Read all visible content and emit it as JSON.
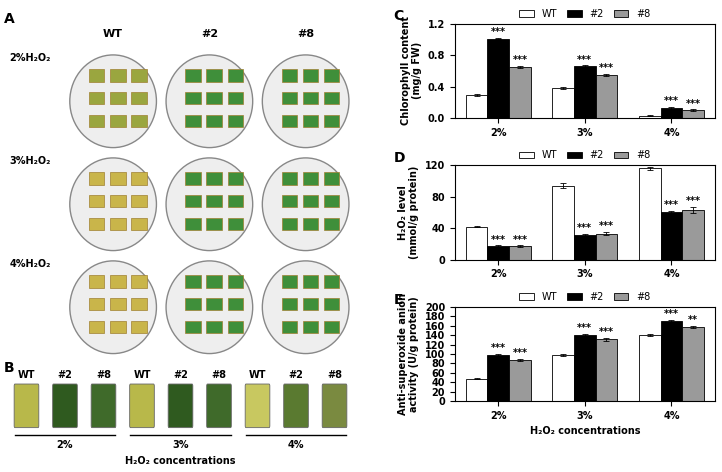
{
  "chart_data": [
    {
      "type": "bar",
      "panel": "C",
      "ylabel": "Chlorophyll content\n(mg/g FW)",
      "categories": [
        "2%",
        "3%",
        "4%"
      ],
      "ylim": [
        0.0,
        1.2
      ],
      "yticks": [
        0.0,
        0.4,
        0.8,
        1.2
      ],
      "legend": "upper center",
      "series": [
        {
          "name": "WT",
          "color": "#ffffff",
          "values": [
            0.29,
            0.38,
            0.03
          ],
          "errors": [
            0.01,
            0.01,
            0.005
          ]
        },
        {
          "name": "#2",
          "color": "#000000",
          "values": [
            1.01,
            0.66,
            0.13
          ],
          "errors": [
            0.01,
            0.01,
            0.01
          ],
          "significance": [
            "***",
            "***",
            "***"
          ]
        },
        {
          "name": "#8",
          "color": "#9a9a9a",
          "values": [
            0.65,
            0.55,
            0.1
          ],
          "errors": [
            0.01,
            0.01,
            0.01
          ],
          "significance": [
            "***",
            "***",
            "***"
          ]
        }
      ]
    },
    {
      "type": "bar",
      "panel": "D",
      "ylabel": "H₂O₂ level\n(mmol/g protein)",
      "categories": [
        "2%",
        "3%",
        "4%"
      ],
      "ylim": [
        0,
        120
      ],
      "yticks": [
        0,
        40,
        80,
        120
      ],
      "legend": "upper center",
      "series": [
        {
          "name": "WT",
          "color": "#ffffff",
          "values": [
            42,
            94,
            116
          ],
          "errors": [
            1,
            3,
            2
          ]
        },
        {
          "name": "#2",
          "color": "#000000",
          "values": [
            17,
            31,
            60
          ],
          "errors": [
            1,
            2,
            2
          ],
          "significance": [
            "***",
            "***",
            "***"
          ]
        },
        {
          "name": "#8",
          "color": "#9a9a9a",
          "values": [
            17,
            33,
            63
          ],
          "errors": [
            1,
            2,
            4
          ],
          "significance": [
            "***",
            "***",
            "***"
          ]
        }
      ]
    },
    {
      "type": "bar",
      "panel": "E",
      "ylabel": "Anti-superoxide anion\nactivity (U/g protein)",
      "xlabel": "H₂O₂ concentrations",
      "categories": [
        "2%",
        "3%",
        "4%"
      ],
      "ylim": [
        0,
        200
      ],
      "yticks": [
        0,
        20,
        40,
        60,
        80,
        100,
        120,
        140,
        160,
        180,
        200
      ],
      "legend": "upper center",
      "series": [
        {
          "name": "WT",
          "color": "#ffffff",
          "values": [
            48,
            97,
            141
          ],
          "errors": [
            2,
            2,
            2
          ]
        },
        {
          "name": "#2",
          "color": "#000000",
          "values": [
            98,
            140,
            170
          ],
          "errors": [
            2,
            2,
            3
          ],
          "significance": [
            "***",
            "***",
            "***"
          ]
        },
        {
          "name": "#8",
          "color": "#9a9a9a",
          "values": [
            88,
            131,
            157
          ],
          "errors": [
            2,
            3,
            2
          ],
          "significance": [
            "***",
            "***",
            "**"
          ]
        }
      ]
    }
  ],
  "photo_panels": [
    {
      "panel": "A",
      "columns": [
        "WT",
        "#2",
        "#8"
      ],
      "rows": [
        "2%H₂O₂",
        "3%H₂O₂",
        "4%H₂O₂"
      ]
    },
    {
      "panel": "B",
      "tube_labels": [
        "WT",
        "#2",
        "#8"
      ],
      "groups": [
        "2%",
        "3%",
        "4%"
      ],
      "xlabel": "H₂O₂ concentrations"
    }
  ]
}
